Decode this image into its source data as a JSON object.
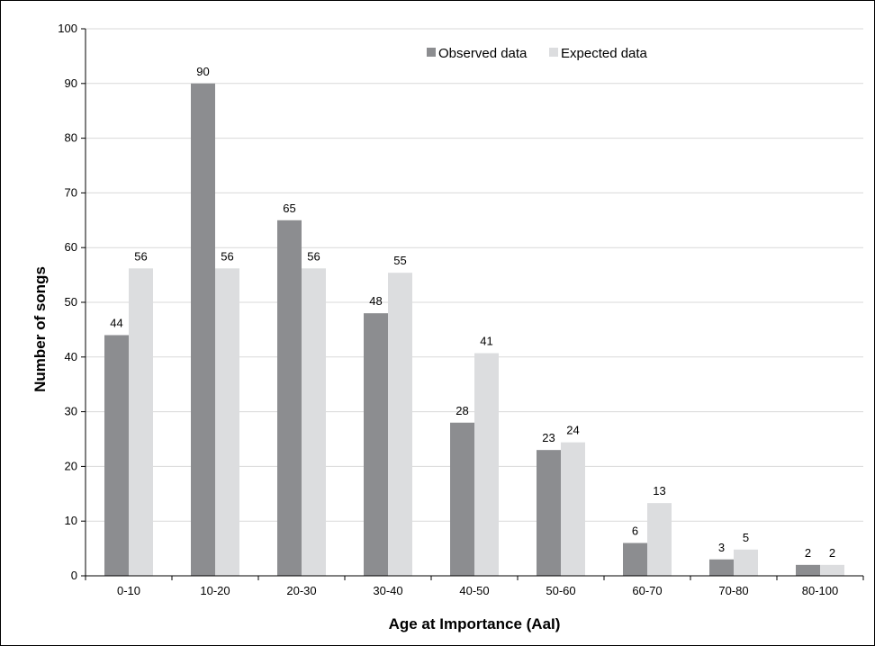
{
  "chart_data": {
    "type": "bar",
    "title": "",
    "xlabel": "Age at Importance (AaI)",
    "ylabel": "Number of songs",
    "categories": [
      "0-10",
      "10-20",
      "20-30",
      "30-40",
      "40-50",
      "50-60",
      "60-70",
      "70-80",
      "80-100"
    ],
    "series": [
      {
        "name": "Observed data",
        "values": [
          44,
          90,
          65,
          48,
          28,
          23,
          6,
          3,
          2
        ],
        "labels": [
          "44",
          "90",
          "65",
          "48",
          "28",
          "23",
          "6",
          "3",
          "2"
        ],
        "color": "#8c8d90"
      },
      {
        "name": "Expected data",
        "values": [
          56.2,
          56.2,
          56.2,
          55.4,
          40.7,
          24.4,
          13.3,
          4.8,
          2.0
        ],
        "labels": [
          "56",
          "56",
          "56",
          "55",
          "41",
          "24",
          "13",
          "5",
          "2"
        ],
        "color": "#dcdddf"
      }
    ],
    "ylim": [
      0,
      100
    ],
    "yticks": [
      0,
      10,
      20,
      30,
      40,
      50,
      60,
      70,
      80,
      90,
      100
    ],
    "ytick_labels": [
      "0",
      "10",
      "20",
      "30",
      "40",
      "50",
      "60",
      "70",
      "80",
      "90",
      "100"
    ],
    "grid": true,
    "grid_color": "#d9d9d9",
    "legend": "top-right"
  }
}
